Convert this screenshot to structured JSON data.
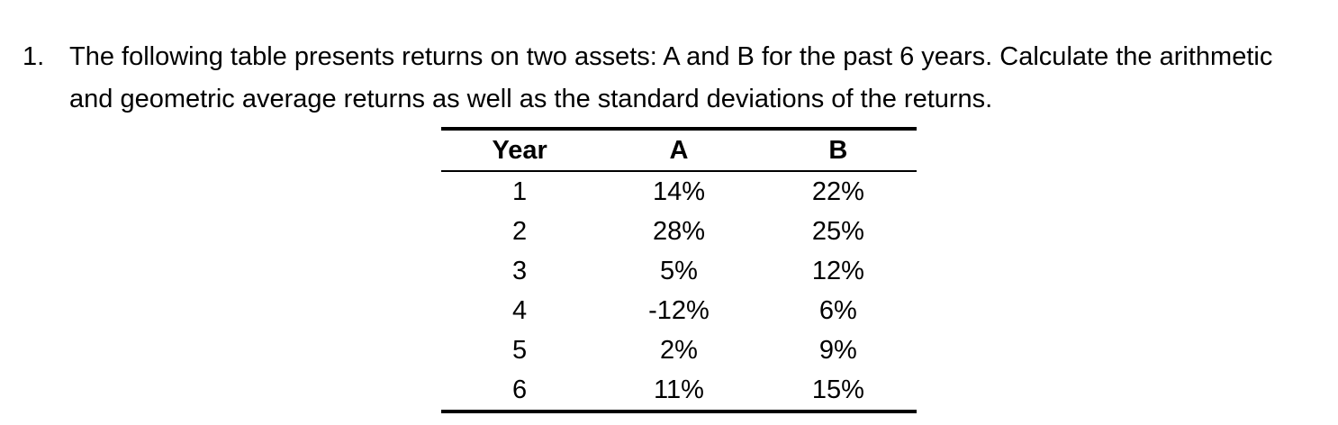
{
  "colors": {
    "text": "#000000",
    "background": "#ffffff"
  },
  "question": {
    "number": "1.",
    "text": "The following table presents returns on two assets: A and B for the past 6 years. Calculate the arithmetic and geometric average returns as well as the standard deviations of the returns."
  },
  "table": {
    "headers": [
      "Year",
      "A",
      "B"
    ],
    "rows": [
      [
        "1",
        "14%",
        "22%"
      ],
      [
        "2",
        "28%",
        "25%"
      ],
      [
        "3",
        "5%",
        "12%"
      ],
      [
        "4",
        "-12%",
        "6%"
      ],
      [
        "5",
        "2%",
        "9%"
      ],
      [
        "6",
        "11%",
        "15%"
      ]
    ]
  }
}
